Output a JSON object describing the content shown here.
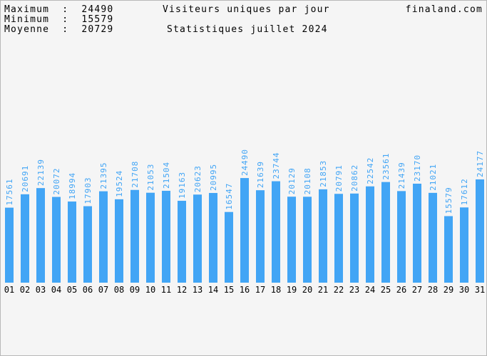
{
  "header": {
    "max_label": "Maximum  :  24490",
    "min_label": "Minimum  :  15579",
    "avg_label": "Moyenne  :  20729",
    "title": "Visiteurs uniques par jour",
    "site": "finaland.com",
    "subtitle": "Statistiques juillet 2024"
  },
  "colors": {
    "bar": "#42a5f5",
    "value_text": "#42a5f5",
    "background": "#f5f5f5",
    "border": "#b8b8b8"
  },
  "chart_data": {
    "type": "bar",
    "title": "Visiteurs uniques par jour",
    "subtitle": "Statistiques juillet 2024",
    "xlabel": "",
    "ylabel": "",
    "ylim": [
      0,
      40000
    ],
    "grid": false,
    "categories": [
      "01",
      "02",
      "03",
      "04",
      "05",
      "06",
      "07",
      "08",
      "09",
      "10",
      "11",
      "12",
      "13",
      "14",
      "15",
      "16",
      "17",
      "18",
      "19",
      "20",
      "21",
      "22",
      "23",
      "24",
      "25",
      "26",
      "27",
      "28",
      "29",
      "30",
      "31"
    ],
    "values": [
      17561,
      20691,
      22139,
      20072,
      18994,
      17903,
      21395,
      19524,
      21708,
      21053,
      21504,
      19163,
      20623,
      20995,
      16547,
      24490,
      21639,
      23744,
      20129,
      20108,
      21853,
      20791,
      20862,
      22542,
      23561,
      21439,
      23170,
      21021,
      15579,
      17612,
      24177
    ],
    "labels": [
      "17561",
      "20691",
      "22139",
      "20072",
      "18994",
      "17903",
      "21395",
      "19524",
      "21708",
      "21053",
      "21504",
      "19163",
      "20623",
      "20995",
      "16547",
      "24490",
      "21639",
      "23744",
      "20129",
      "20108",
      "21853",
      "20791",
      "20862",
      "22542",
      "23561",
      "21439",
      "23170",
      "21021",
      "15579",
      "17612",
      "24177"
    ]
  }
}
